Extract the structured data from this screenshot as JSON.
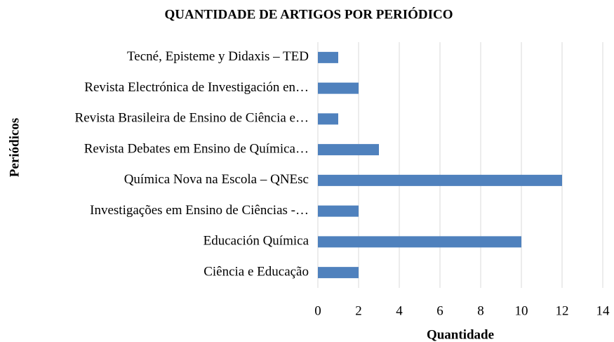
{
  "chart_data": {
    "type": "bar",
    "orientation": "horizontal",
    "title": "QUANTIDADE DE ARTIGOS POR PERIÓDICO",
    "x_label": "Quantidade",
    "y_label": "Periódicos",
    "categories": [
      "Tecné, Episteme y Didaxis – TED",
      "Revista Electrónica de Investigación en…",
      "Revista Brasileira de Ensino de Ciência e…",
      "Revista Debates em Ensino de Química…",
      "Química Nova na Escola – QNEsc",
      "Investigações em Ensino de Ciências -…",
      "Educación Química",
      "Ciência e Educação"
    ],
    "values": [
      1,
      2,
      1,
      3,
      12,
      2,
      10,
      2
    ],
    "color": "#4f81bd",
    "xlim": [
      0,
      14
    ],
    "xticks": [
      0,
      2,
      4,
      6,
      8,
      10,
      12,
      14
    ],
    "grid": true
  }
}
